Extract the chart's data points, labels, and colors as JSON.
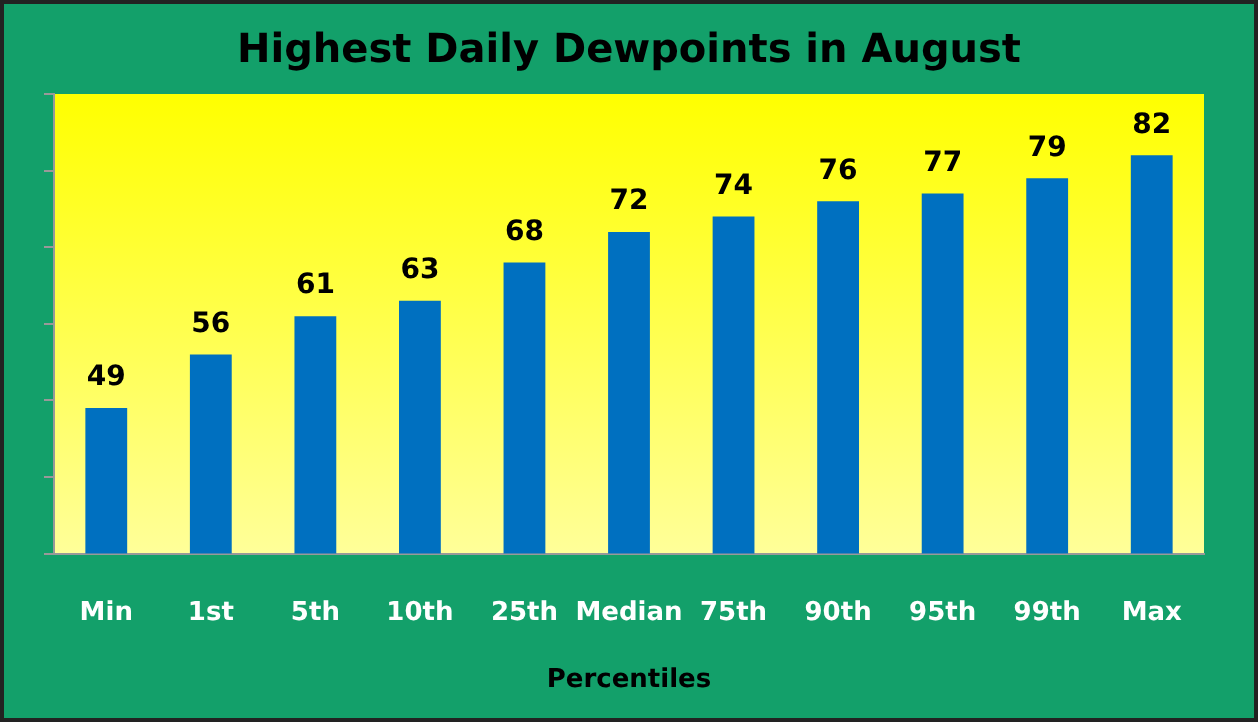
{
  "chart_data": {
    "type": "bar",
    "title": "Highest Daily Dewpoints in August",
    "xlabel": "Percentiles",
    "categories": [
      "Min",
      "1st",
      "5th",
      "10th",
      "25th",
      "Median",
      "75th",
      "90th",
      "95th",
      "99th",
      "Max"
    ],
    "values": [
      49,
      56,
      61,
      63,
      68,
      72,
      74,
      76,
      77,
      79,
      82
    ],
    "color": "#0070c0",
    "ylim": [
      30,
      90
    ],
    "yticks": [
      {
        "value": 30,
        "label": null
      },
      {
        "value": 40,
        "label": null
      },
      {
        "value": 50,
        "label": null
      },
      {
        "value": 60,
        "label": null
      },
      {
        "value": 70,
        "label": null
      },
      {
        "value": 80,
        "label": null
      },
      {
        "value": 90,
        "label": null
      }
    ],
    "tick_labels": "x",
    "data_labels": true,
    "grid": false,
    "legend": false
  }
}
